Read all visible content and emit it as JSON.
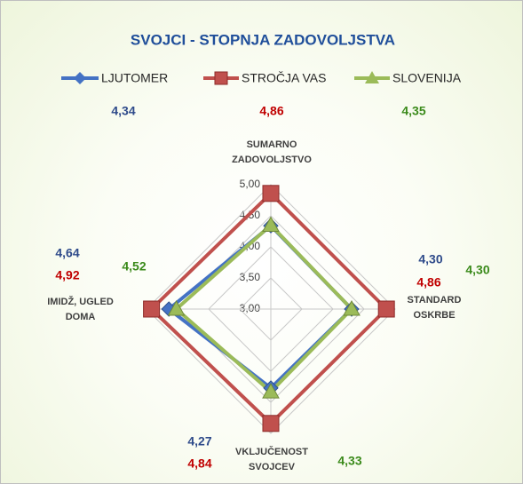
{
  "chart_data": {
    "type": "radar",
    "title": "SVOJCI - STOPNJA ZADOVOLJSTVA",
    "categories": [
      "SUMARNO ZADOVOLJSTVO",
      "STANDARD OSKRBE",
      "VKLJUČENOST SVOJCEV",
      "IMIDŽ, UGLED DOMA"
    ],
    "series": [
      {
        "name": "LJUTOMER",
        "color": "#4472c4",
        "label_color": "#2e4a8a",
        "marker": "diamond",
        "values": [
          4.34,
          4.3,
          4.27,
          4.64
        ],
        "value_labels": [
          "4,34",
          "4,30",
          "4,27",
          "4,64"
        ]
      },
      {
        "name": "STROČJA VAS",
        "color": "#c0504d",
        "label_color": "#c00000",
        "marker": "square",
        "values": [
          4.86,
          4.86,
          4.84,
          4.92
        ],
        "value_labels": [
          "4,86",
          "4,86",
          "4,84",
          "4,92"
        ]
      },
      {
        "name": "SLOVENIJA",
        "color": "#9bbb59",
        "label_color": "#3a8a1a",
        "marker": "triangle",
        "values": [
          4.35,
          4.3,
          4.33,
          4.52
        ],
        "value_labels": [
          "4,35",
          "4,30",
          "4,33",
          "4,52"
        ]
      }
    ],
    "ylim": [
      3,
      5
    ],
    "yticks": [
      {
        "value": 3,
        "label": "3,00"
      },
      {
        "value": 3.5,
        "label": "3,50"
      },
      {
        "value": 4,
        "label": "4,00"
      },
      {
        "value": 4.5,
        "label": "4,50"
      },
      {
        "value": 5,
        "label": "5,00"
      }
    ],
    "legend": "top",
    "grid": true
  }
}
